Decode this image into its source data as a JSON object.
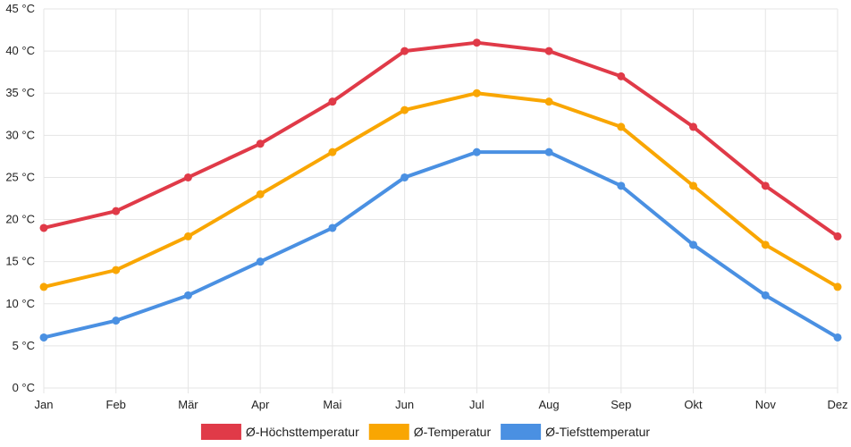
{
  "chart_data": {
    "type": "line",
    "title": "",
    "xlabel": "",
    "ylabel": "",
    "unit": "°C",
    "ylim": [
      0,
      45
    ],
    "y_ticks": [
      "0 °C",
      "5 °C",
      "10 °C",
      "15 °C",
      "20 °C",
      "25 °C",
      "30 °C",
      "35 °C",
      "40 °C",
      "45 °C"
    ],
    "y_tick_values": [
      0,
      5,
      10,
      15,
      20,
      25,
      30,
      35,
      40,
      45
    ],
    "categories": [
      "Jan",
      "Feb",
      "Mär",
      "Apr",
      "Mai",
      "Jun",
      "Jul",
      "Aug",
      "Sep",
      "Okt",
      "Nov",
      "Dez"
    ],
    "grid": true,
    "legend_position": "bottom",
    "series": [
      {
        "name": "Ø-Höchsttemperatur",
        "color": "#e03a48",
        "values": [
          19,
          21,
          25,
          29,
          34,
          40,
          41,
          40,
          37,
          31,
          24,
          18
        ]
      },
      {
        "name": "Ø-Temperatur",
        "color": "#f9a602",
        "values": [
          12,
          14,
          18,
          23,
          28,
          33,
          35,
          34,
          31,
          24,
          17,
          12
        ]
      },
      {
        "name": "Ø-Tiefsttemperatur",
        "color": "#4a90e2",
        "values": [
          6,
          8,
          11,
          15,
          19,
          25,
          28,
          28,
          24,
          17,
          11,
          6
        ]
      }
    ]
  }
}
